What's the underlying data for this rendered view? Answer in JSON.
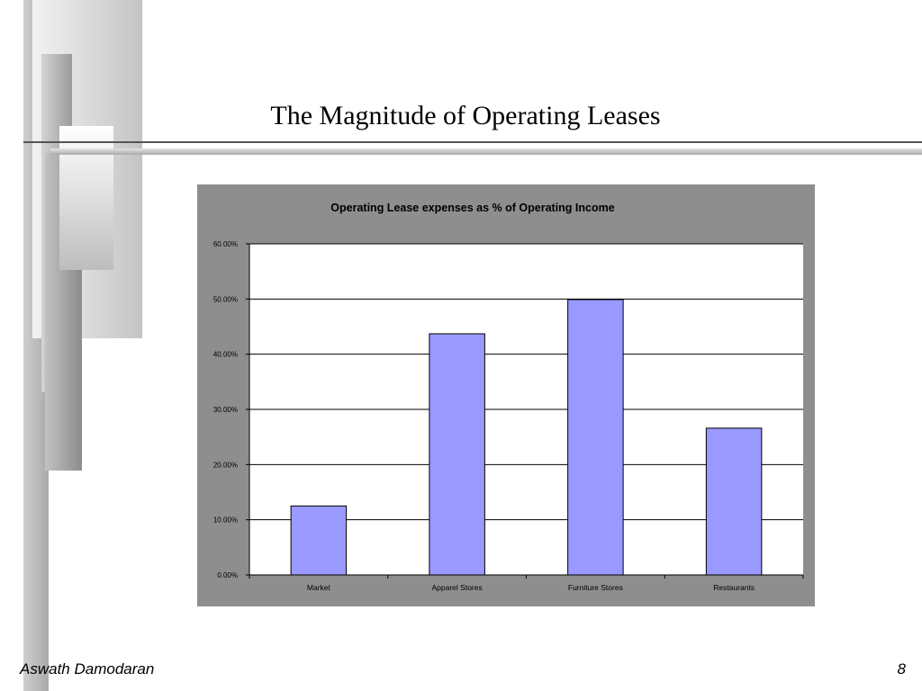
{
  "slide": {
    "title": "The Magnitude of Operating Leases",
    "footer_author": "Aswath Damodaran",
    "page_number": "8"
  },
  "colors": {
    "bar_fill": "#9999ff",
    "panel_bg": "#8e8e8e",
    "plot_bg": "#ffffff"
  },
  "chart_data": {
    "type": "bar",
    "title": "Operating Lease expenses as % of Operating Income",
    "xlabel": "",
    "ylabel": "",
    "categories": [
      "Market",
      "Apparel Stores",
      "Furniture Stores",
      "Restaurants"
    ],
    "values": [
      12.5,
      43.7,
      49.9,
      26.6
    ],
    "value_unit": "percent",
    "ylim": [
      0,
      60
    ],
    "y_ticks": [
      "0.00%",
      "10.00%",
      "20.00%",
      "30.00%",
      "40.00%",
      "50.00%",
      "60.00%"
    ],
    "grid": true,
    "legend": "none"
  }
}
